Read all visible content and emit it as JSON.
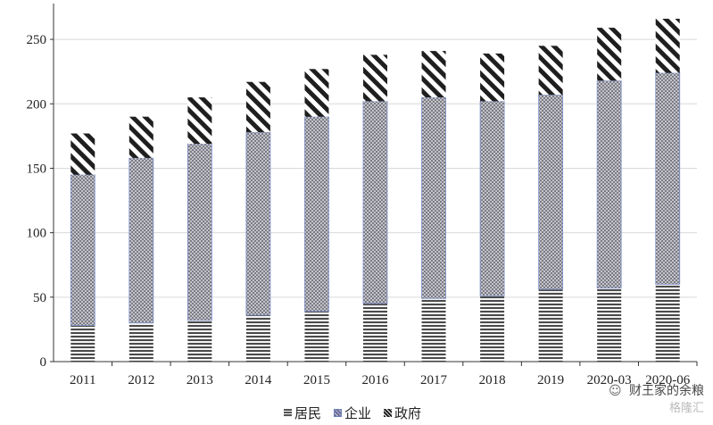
{
  "chart_data": {
    "type": "bar",
    "stacked": true,
    "categories": [
      "2011",
      "2012",
      "2013",
      "2014",
      "2015",
      "2016",
      "2017",
      "2018",
      "2019",
      "2020-03",
      "2020-06"
    ],
    "series": [
      {
        "name": "居民",
        "values": [
          28,
          30,
          32,
          36,
          39,
          45,
          49,
          51,
          56,
          57,
          60
        ],
        "pattern": "horizontal-stripes",
        "color": "#555555"
      },
      {
        "name": "企业",
        "values": [
          117,
          128,
          137,
          142,
          151,
          157,
          156,
          151,
          151,
          161,
          164
        ],
        "pattern": "crosshatch",
        "color": "#8a8fb0"
      },
      {
        "name": "政府",
        "values": [
          32,
          32,
          36,
          39,
          37,
          36,
          36,
          37,
          38,
          41,
          42
        ],
        "pattern": "diagonal-stripes",
        "color": "#222222"
      }
    ],
    "ylim": [
      0,
      275
    ],
    "yticks": [
      0,
      50,
      100,
      150,
      200,
      250
    ],
    "grid": true,
    "legend_position": "bottom",
    "title": "",
    "xlabel": "",
    "ylabel": ""
  },
  "watermark": {
    "line1": "财王家的余粮",
    "line2": "格隆汇",
    "icon": "wechat-icon"
  }
}
